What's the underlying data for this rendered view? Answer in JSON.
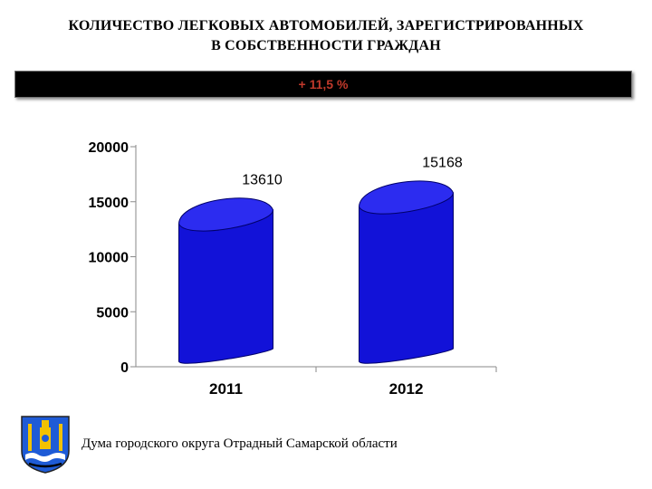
{
  "slide": {
    "title_line1": "КОЛИЧЕСТВО ЛЕГКОВЫХ АВТОМОБИЛЕЙ, ЗАРЕГИСТРИРОВАННЫХ",
    "title_line2": "В СОБСТВЕННОСТИ ГРАЖДАН",
    "banner_text": "+ 11,5 %",
    "footer_text": "Дума городского округа Отрадный Самарской области"
  },
  "colors": {
    "cylinder": "#1212d8",
    "cylinder_top": "#2c2cf0",
    "banner_bg": "#000000",
    "banner_text": "#c0392b"
  },
  "chart_data": {
    "type": "bar",
    "categories": [
      "2011",
      "2012"
    ],
    "values": [
      13610,
      15168
    ],
    "data_labels": [
      "13610",
      "15168"
    ],
    "yticks": [
      "0",
      "5000",
      "10000",
      "15000",
      "20000"
    ],
    "ylim": [
      0,
      20000
    ],
    "title": "",
    "xlabel": "",
    "ylabel": "",
    "grid": false,
    "legend": "none",
    "shape": "cylinder"
  }
}
